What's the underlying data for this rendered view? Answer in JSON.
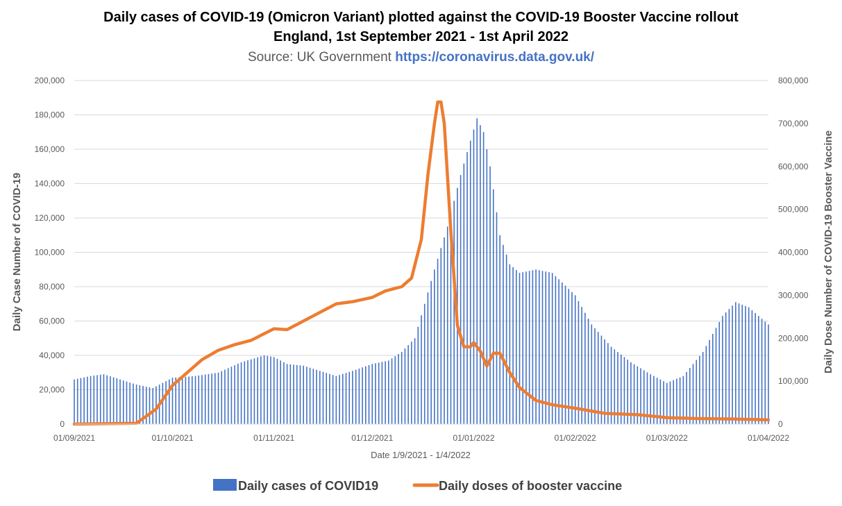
{
  "chart_data": {
    "type": "bar+line",
    "title_line1": "Daily cases of COVID-19 (Omicron Variant) plotted against the COVID-19 Booster Vaccine rollout",
    "title_line2": "England, 1st September 2021 - 1st April 2022",
    "source_prefix": "Source: UK Government",
    "source_url_text": "https://coronavirus.data.gov.uk/",
    "xlabel": "Date 1/9/2021 - 1/4/2022",
    "ylabel_left": "Daily Case Number of COVID-19",
    "ylabel_right": "Daily Dose Number of COVID-19 Booster Vaccine",
    "x_ticks": [
      "01/09/2021",
      "01/10/2021",
      "01/11/2021",
      "01/12/2021",
      "01/01/2022",
      "01/02/2022",
      "01/03/2022",
      "01/04/2022"
    ],
    "x_range": [
      "01/09/2021",
      "01/04/2022"
    ],
    "ylim_left": [
      0,
      200000
    ],
    "ylim_right": [
      0,
      800000
    ],
    "y_ticks_left": [
      "0",
      "20,000",
      "40,000",
      "60,000",
      "80,000",
      "100,000",
      "120,000",
      "140,000",
      "160,000",
      "180,000",
      "200,000"
    ],
    "y_ticks_right": [
      "0",
      "100,000",
      "200,000",
      "300,000",
      "400,000",
      "500,000",
      "600,000",
      "700,000",
      "800,000"
    ],
    "grid": true,
    "legend_position": "bottom",
    "series": [
      {
        "name": "Daily cases of COVID19",
        "axis": "left",
        "chart": "bar",
        "color": "#4472c4",
        "points": [
          [
            "01/09/2021",
            26000
          ],
          [
            "06/09/2021",
            28000
          ],
          [
            "10/09/2021",
            29000
          ],
          [
            "15/09/2021",
            26000
          ],
          [
            "20/09/2021",
            23000
          ],
          [
            "25/09/2021",
            21000
          ],
          [
            "01/10/2021",
            27000
          ],
          [
            "08/10/2021",
            28000
          ],
          [
            "15/10/2021",
            30000
          ],
          [
            "22/10/2021",
            36000
          ],
          [
            "29/10/2021",
            40000
          ],
          [
            "01/11/2021",
            39000
          ],
          [
            "05/11/2021",
            35000
          ],
          [
            "10/11/2021",
            34000
          ],
          [
            "15/11/2021",
            31000
          ],
          [
            "20/11/2021",
            28000
          ],
          [
            "25/11/2021",
            31000
          ],
          [
            "01/12/2021",
            35000
          ],
          [
            "06/12/2021",
            37000
          ],
          [
            "10/12/2021",
            42000
          ],
          [
            "14/12/2021",
            50000
          ],
          [
            "17/12/2021",
            70000
          ],
          [
            "20/12/2021",
            90000
          ],
          [
            "24/12/2021",
            115000
          ],
          [
            "28/12/2021",
            145000
          ],
          [
            "31/12/2021",
            165000
          ],
          [
            "02/01/2022",
            178000
          ],
          [
            "04/01/2022",
            170000
          ],
          [
            "06/01/2022",
            150000
          ],
          [
            "09/01/2022",
            110000
          ],
          [
            "12/01/2022",
            93000
          ],
          [
            "15/01/2022",
            88000
          ],
          [
            "20/01/2022",
            90000
          ],
          [
            "25/01/2022",
            88000
          ],
          [
            "01/02/2022",
            75000
          ],
          [
            "06/02/2022",
            58000
          ],
          [
            "12/02/2022",
            45000
          ],
          [
            "18/02/2022",
            36000
          ],
          [
            "24/02/2022",
            29000
          ],
          [
            "01/03/2022",
            24000
          ],
          [
            "06/03/2022",
            28000
          ],
          [
            "12/03/2022",
            42000
          ],
          [
            "18/03/2022",
            63000
          ],
          [
            "22/03/2022",
            71000
          ],
          [
            "26/03/2022",
            68000
          ],
          [
            "01/04/2022",
            58000
          ]
        ]
      },
      {
        "name": "Daily doses of booster vaccine",
        "axis": "right",
        "chart": "line",
        "color": "#ed7d31",
        "points": [
          [
            "01/09/2021",
            0
          ],
          [
            "20/09/2021",
            2000
          ],
          [
            "26/09/2021",
            35000
          ],
          [
            "01/10/2021",
            90000
          ],
          [
            "10/10/2021",
            150000
          ],
          [
            "15/10/2021",
            172000
          ],
          [
            "20/10/2021",
            185000
          ],
          [
            "25/10/2021",
            195000
          ],
          [
            "01/11/2021",
            222000
          ],
          [
            "05/11/2021",
            220000
          ],
          [
            "10/11/2021",
            240000
          ],
          [
            "15/11/2021",
            260000
          ],
          [
            "20/11/2021",
            280000
          ],
          [
            "25/11/2021",
            285000
          ],
          [
            "01/12/2021",
            295000
          ],
          [
            "05/12/2021",
            310000
          ],
          [
            "10/12/2021",
            320000
          ],
          [
            "13/12/2021",
            340000
          ],
          [
            "16/12/2021",
            430000
          ],
          [
            "18/12/2021",
            580000
          ],
          [
            "20/12/2021",
            700000
          ],
          [
            "21/12/2021",
            750000
          ],
          [
            "22/12/2021",
            750000
          ],
          [
            "23/12/2021",
            700000
          ],
          [
            "25/12/2021",
            450000
          ],
          [
            "27/12/2021",
            230000
          ],
          [
            "29/12/2021",
            180000
          ],
          [
            "31/12/2021",
            180000
          ],
          [
            "01/01/2022",
            190000
          ],
          [
            "03/01/2022",
            170000
          ],
          [
            "05/01/2022",
            135000
          ],
          [
            "07/01/2022",
            165000
          ],
          [
            "09/01/2022",
            165000
          ],
          [
            "12/01/2022",
            120000
          ],
          [
            "15/01/2022",
            85000
          ],
          [
            "20/01/2022",
            55000
          ],
          [
            "25/01/2022",
            45000
          ],
          [
            "01/02/2022",
            37000
          ],
          [
            "10/02/2022",
            25000
          ],
          [
            "20/02/2022",
            22000
          ],
          [
            "01/03/2022",
            15000
          ],
          [
            "10/03/2022",
            13000
          ],
          [
            "20/03/2022",
            12000
          ],
          [
            "01/04/2022",
            10000
          ]
        ]
      }
    ]
  }
}
